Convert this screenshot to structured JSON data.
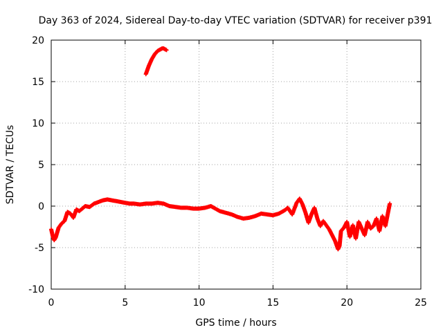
{
  "chart_data": {
    "type": "scatter",
    "title": "Day 363 of 2024, Sidereal Day-to-day VTEC variation (SDTVAR) for receiver p391",
    "xlabel": "GPS time / hours",
    "ylabel": "SDTVAR / TECUs",
    "xlim": [
      0,
      25
    ],
    "ylim": [
      -10,
      20
    ],
    "xticks": [
      0,
      5,
      10,
      15,
      20,
      25
    ],
    "yticks": [
      -10,
      -5,
      0,
      5,
      10,
      15,
      20
    ],
    "xtick_labels": [
      "0",
      "5",
      "10",
      "15",
      "20",
      "25"
    ],
    "ytick_labels": [
      "-10",
      "-5",
      "0",
      "5",
      "10",
      "15",
      "20"
    ],
    "grid": true,
    "marker": "plus",
    "color": "#ff0000",
    "series": [
      {
        "name": "SDTVAR main trace",
        "x": [
          0.0,
          0.1,
          0.2,
          0.3,
          0.4,
          0.5,
          0.7,
          0.9,
          1.1,
          1.3,
          1.5,
          1.7,
          1.9,
          2.1,
          2.3,
          2.6,
          2.9,
          3.2,
          3.5,
          3.8,
          4.1,
          4.4,
          4.7,
          5.0,
          5.3,
          5.6,
          6.0,
          6.4,
          6.8,
          7.2,
          7.6,
          8.0,
          8.4,
          8.8,
          9.2,
          9.6,
          10.0,
          10.4,
          10.8,
          11.0,
          11.4,
          11.8,
          12.2,
          12.6,
          13.0,
          13.4,
          13.8,
          14.2,
          14.6,
          15.0,
          15.4,
          15.8,
          16.0,
          16.3,
          16.6,
          16.8,
          17.0,
          17.2,
          17.4,
          17.6,
          17.8,
          18.0,
          18.2,
          18.4,
          18.6,
          18.8,
          19.0,
          19.2,
          19.4,
          19.5,
          19.6,
          19.8,
          20.0,
          20.2,
          20.4,
          20.6,
          20.8,
          21.0,
          21.2,
          21.4,
          21.6,
          21.8,
          22.0,
          22.2,
          22.4,
          22.6,
          22.8,
          22.9
        ],
        "y": [
          -2.8,
          -3.6,
          -4.1,
          -3.8,
          -3.2,
          -2.6,
          -2.1,
          -1.8,
          -0.7,
          -0.9,
          -1.4,
          -0.4,
          -0.6,
          -0.3,
          0.0,
          -0.1,
          0.3,
          0.5,
          0.7,
          0.8,
          0.7,
          0.6,
          0.5,
          0.4,
          0.3,
          0.3,
          0.2,
          0.3,
          0.3,
          0.4,
          0.3,
          0.0,
          -0.1,
          -0.2,
          -0.2,
          -0.3,
          -0.3,
          -0.2,
          0.0,
          -0.2,
          -0.6,
          -0.8,
          -1.0,
          -1.3,
          -1.5,
          -1.4,
          -1.2,
          -0.9,
          -1.0,
          -1.1,
          -0.9,
          -0.5,
          -0.2,
          -1.0,
          0.4,
          0.9,
          0.2,
          -0.8,
          -2.0,
          -1.0,
          -0.2,
          -1.5,
          -2.4,
          -1.8,
          -2.3,
          -2.8,
          -3.5,
          -4.2,
          -5.2,
          -4.8,
          -3.0,
          -2.6,
          -1.9,
          -3.7,
          -2.3,
          -3.9,
          -1.9,
          -2.7,
          -3.5,
          -1.9,
          -2.7,
          -2.4,
          -1.5,
          -3.0,
          -1.2,
          -2.4,
          -0.6,
          0.3
        ]
      },
      {
        "name": "SDTVAR high arc",
        "x": [
          6.4,
          6.5,
          6.6,
          6.7,
          6.8,
          6.9,
          7.0,
          7.1,
          7.2,
          7.3,
          7.4,
          7.5,
          7.6,
          7.7,
          7.8
        ],
        "y": [
          15.9,
          16.4,
          16.9,
          17.3,
          17.7,
          18.0,
          18.3,
          18.5,
          18.7,
          18.8,
          18.9,
          19.0,
          19.0,
          18.9,
          18.8
        ]
      }
    ]
  }
}
